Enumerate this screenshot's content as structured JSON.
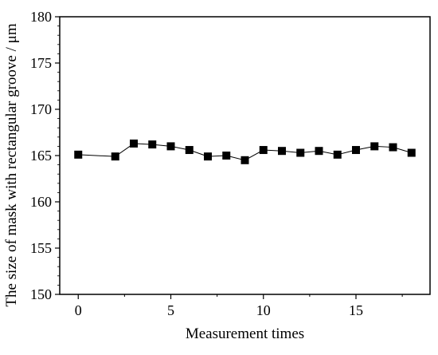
{
  "chart_data": {
    "type": "line",
    "xlabel": "Measurement times",
    "ylabel": "The size of mask with rectangular groove / μm",
    "xlim": [
      -1,
      19
    ],
    "ylim": [
      150,
      180
    ],
    "xticks": [
      0,
      5,
      10,
      15
    ],
    "yticks": [
      150,
      155,
      160,
      165,
      170,
      175,
      180
    ],
    "marker": "square",
    "color": "#000000",
    "grid": false,
    "series": [
      {
        "x": [
          0,
          2,
          3,
          4,
          5,
          6,
          7,
          8,
          9,
          10,
          11,
          12,
          13,
          14,
          15,
          16,
          17,
          18
        ],
        "values": [
          165.1,
          164.9,
          166.3,
          166.2,
          166.0,
          165.6,
          164.9,
          165.0,
          164.5,
          165.6,
          165.5,
          165.3,
          165.5,
          165.1,
          165.6,
          166.0,
          165.9,
          165.3
        ]
      }
    ]
  }
}
